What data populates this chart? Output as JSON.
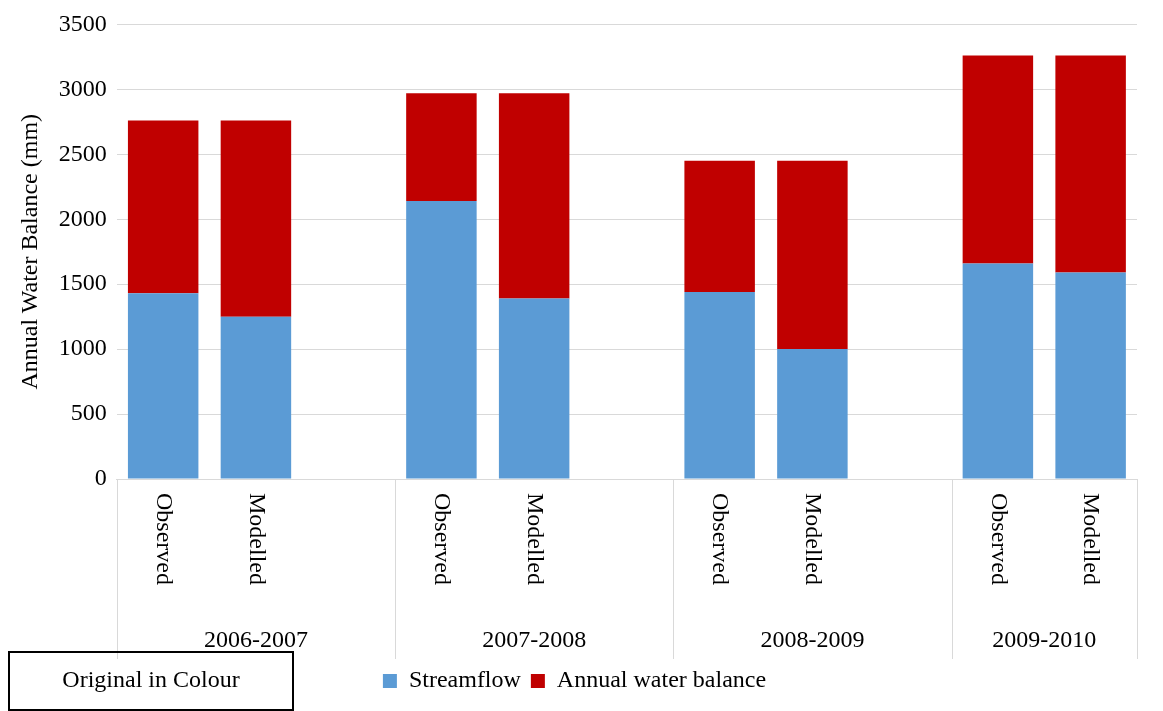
{
  "chart_data": {
    "type": "bar",
    "stacked": true,
    "ylabel": "Annual Water Balance (mm)",
    "categories": [
      "Observed",
      "Modelled",
      null,
      "Observed",
      "Modelled",
      null,
      "Observed",
      "Modelled",
      null,
      "Observed",
      "Modelled"
    ],
    "series": [
      {
        "name": "Streamflow",
        "color": "#5b9bd5",
        "values": [
          1430,
          1250,
          null,
          2140,
          1390,
          null,
          1440,
          1000,
          null,
          1660,
          1590
        ]
      },
      {
        "name": "Annual water balance",
        "color": "#c00000",
        "values": [
          1330,
          1510,
          null,
          830,
          1580,
          null,
          1010,
          1450,
          null,
          1600,
          1670
        ]
      }
    ],
    "ylim": [
      0,
      3500
    ],
    "yticks": [
      0,
      500,
      1000,
      1500,
      2000,
      2500,
      3000,
      3500
    ],
    "grid": "y",
    "legend": "bottom",
    "annotations": [
      "2006-2007",
      "2007-2008",
      "2008-2009",
      "2009-2010",
      "Original in Colour"
    ]
  }
}
